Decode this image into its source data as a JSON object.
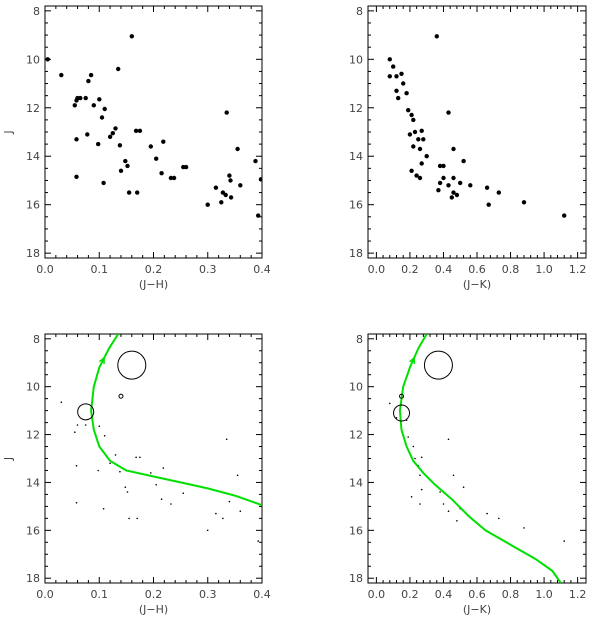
{
  "chart_data": [
    {
      "type": "scatter",
      "panel": "top-left",
      "xlabel": "(J−H)",
      "ylabel": "J",
      "xlim": [
        0.0,
        0.4
      ],
      "ylim": [
        18.2,
        7.8
      ],
      "y_inverted": true,
      "xticks": [
        "0.0",
        "0.1",
        "0.2",
        "0.3",
        "0.4"
      ],
      "yticks": [
        "8",
        "10",
        "12",
        "14",
        "16",
        "18"
      ],
      "grid": false,
      "series": [
        {
          "marker": "dot",
          "points": [
            [
              0.005,
              10.0
            ],
            [
              0.03,
              10.65
            ],
            [
              0.06,
              11.6
            ],
            [
              0.065,
              11.6
            ],
            [
              0.075,
              11.6
            ],
            [
              0.08,
              10.9
            ],
            [
              0.085,
              10.65
            ],
            [
              0.09,
              11.9
            ],
            [
              0.055,
              11.9
            ],
            [
              0.058,
              11.7
            ],
            [
              0.1,
              11.65
            ],
            [
              0.11,
              12.05
            ],
            [
              0.105,
              12.4
            ],
            [
              0.13,
              12.85
            ],
            [
              0.135,
              10.4
            ],
            [
              0.16,
              9.05
            ],
            [
              0.168,
              12.95
            ],
            [
              0.175,
              12.95
            ],
            [
              0.12,
              13.2
            ],
            [
              0.125,
              13.05
            ],
            [
              0.058,
              13.3
            ],
            [
              0.078,
              13.1
            ],
            [
              0.098,
              13.5
            ],
            [
              0.138,
              13.55
            ],
            [
              0.148,
              14.2
            ],
            [
              0.152,
              14.4
            ],
            [
              0.14,
              14.6
            ],
            [
              0.195,
              13.6
            ],
            [
              0.218,
              13.4
            ],
            [
              0.205,
              14.1
            ],
            [
              0.215,
              14.7
            ],
            [
              0.232,
              14.9
            ],
            [
              0.238,
              14.9
            ],
            [
              0.255,
              14.45
            ],
            [
              0.26,
              14.45
            ],
            [
              0.058,
              14.85
            ],
            [
              0.108,
              15.1
            ],
            [
              0.155,
              15.5
            ],
            [
              0.17,
              15.5
            ],
            [
              0.335,
              12.2
            ],
            [
              0.355,
              13.7
            ],
            [
              0.388,
              14.2
            ],
            [
              0.398,
              14.95
            ],
            [
              0.34,
              14.8
            ],
            [
              0.342,
              15.0
            ],
            [
              0.36,
              15.2
            ],
            [
              0.315,
              15.3
            ],
            [
              0.328,
              15.5
            ],
            [
              0.333,
              15.6
            ],
            [
              0.325,
              15.9
            ],
            [
              0.3,
              16.0
            ],
            [
              0.343,
              15.7
            ],
            [
              0.393,
              16.45
            ]
          ]
        }
      ]
    },
    {
      "type": "scatter",
      "panel": "top-right",
      "xlabel": "(J−K)",
      "ylabel": "J",
      "xlim": [
        -0.05,
        1.25
      ],
      "ylim": [
        18.2,
        7.8
      ],
      "y_inverted": true,
      "xticks": [
        "0.0",
        "0.2",
        "0.4",
        "0.6",
        "0.8",
        "1.0",
        "1.2"
      ],
      "yticks": [
        "8",
        "10",
        "12",
        "14",
        "16",
        "18"
      ],
      "grid": false,
      "series": [
        {
          "marker": "dot",
          "points": [
            [
              0.08,
              10.0
            ],
            [
              0.1,
              10.3
            ],
            [
              0.12,
              10.7
            ],
            [
              0.08,
              10.7
            ],
            [
              0.15,
              10.6
            ],
            [
              0.16,
              11.0
            ],
            [
              0.18,
              11.4
            ],
            [
              0.12,
              11.3
            ],
            [
              0.13,
              11.6
            ],
            [
              0.19,
              12.1
            ],
            [
              0.21,
              12.3
            ],
            [
              0.22,
              12.5
            ],
            [
              0.23,
              13.0
            ],
            [
              0.27,
              12.95
            ],
            [
              0.2,
              13.1
            ],
            [
              0.25,
              13.3
            ],
            [
              0.28,
              13.3
            ],
            [
              0.22,
              13.6
            ],
            [
              0.26,
              13.7
            ],
            [
              0.3,
              14.0
            ],
            [
              0.27,
              14.3
            ],
            [
              0.21,
              14.6
            ],
            [
              0.24,
              14.8
            ],
            [
              0.26,
              14.9
            ],
            [
              0.36,
              9.05
            ],
            [
              0.43,
              12.2
            ],
            [
              0.38,
              14.4
            ],
            [
              0.4,
              14.4
            ],
            [
              0.46,
              13.7
            ],
            [
              0.52,
              14.2
            ],
            [
              0.4,
              14.9
            ],
            [
              0.38,
              15.1
            ],
            [
              0.37,
              15.4
            ],
            [
              0.43,
              15.2
            ],
            [
              0.46,
              14.9
            ],
            [
              0.5,
              15.1
            ],
            [
              0.56,
              15.2
            ],
            [
              0.48,
              15.6
            ],
            [
              0.45,
              15.7
            ],
            [
              0.46,
              15.5
            ],
            [
              0.66,
              15.3
            ],
            [
              0.73,
              15.5
            ],
            [
              0.67,
              16.0
            ],
            [
              0.88,
              15.9
            ],
            [
              1.12,
              16.45
            ]
          ]
        }
      ]
    },
    {
      "type": "scatter",
      "panel": "bottom-left",
      "xlabel": "(J−H)",
      "ylabel": "J",
      "xlim": [
        0.0,
        0.4
      ],
      "ylim": [
        18.2,
        7.8
      ],
      "y_inverted": true,
      "xticks": [
        "0.0",
        "0.1",
        "0.2",
        "0.3",
        "0.4"
      ],
      "yticks": [
        "8",
        "10",
        "12",
        "14",
        "16",
        "18"
      ],
      "grid": false,
      "circles": [
        {
          "x": 0.16,
          "y": 9.1,
          "r": 14
        },
        {
          "x": 0.075,
          "y": 11.05,
          "r": 8
        },
        {
          "x": 0.14,
          "y": 10.4,
          "r": 2
        }
      ],
      "series": [
        {
          "marker": "tiny",
          "points": [
            [
              0.03,
              10.65
            ],
            [
              0.06,
              11.6
            ],
            [
              0.075,
              11.6
            ],
            [
              0.055,
              11.9
            ],
            [
              0.1,
              11.65
            ],
            [
              0.11,
              12.05
            ],
            [
              0.13,
              12.85
            ],
            [
              0.168,
              12.95
            ],
            [
              0.175,
              12.95
            ],
            [
              0.12,
              13.2
            ],
            [
              0.058,
              13.3
            ],
            [
              0.098,
              13.5
            ],
            [
              0.138,
              13.55
            ],
            [
              0.148,
              14.2
            ],
            [
              0.152,
              14.4
            ],
            [
              0.195,
              13.6
            ],
            [
              0.218,
              13.4
            ],
            [
              0.205,
              14.1
            ],
            [
              0.215,
              14.7
            ],
            [
              0.232,
              14.9
            ],
            [
              0.255,
              14.45
            ],
            [
              0.058,
              14.85
            ],
            [
              0.108,
              15.1
            ],
            [
              0.155,
              15.5
            ],
            [
              0.17,
              15.5
            ],
            [
              0.335,
              12.2
            ],
            [
              0.355,
              13.7
            ],
            [
              0.34,
              14.8
            ],
            [
              0.36,
              15.2
            ],
            [
              0.315,
              15.3
            ],
            [
              0.328,
              15.5
            ],
            [
              0.3,
              16.0
            ],
            [
              0.393,
              16.45
            ]
          ]
        },
        {
          "marker": "line",
          "color": "#00e000",
          "points": [
            [
              0.135,
              7.8
            ],
            [
              0.118,
              8.4
            ],
            [
              0.1,
              9.2
            ],
            [
              0.09,
              10.0
            ],
            [
              0.085,
              11.0
            ],
            [
              0.09,
              11.8
            ],
            [
              0.1,
              12.5
            ],
            [
              0.12,
              13.1
            ],
            [
              0.15,
              13.5
            ],
            [
              0.2,
              13.75
            ],
            [
              0.25,
              14.0
            ],
            [
              0.3,
              14.25
            ],
            [
              0.35,
              14.55
            ],
            [
              0.4,
              14.95
            ]
          ]
        }
      ]
    },
    {
      "type": "scatter",
      "panel": "bottom-right",
      "xlabel": "(J−K)",
      "ylabel": "J",
      "xlim": [
        -0.05,
        1.25
      ],
      "ylim": [
        18.2,
        7.8
      ],
      "y_inverted": true,
      "xticks": [
        "0.0",
        "0.2",
        "0.4",
        "0.6",
        "0.8",
        "1.0",
        "1.2"
      ],
      "yticks": [
        "8",
        "10",
        "12",
        "14",
        "16",
        "18"
      ],
      "grid": false,
      "circles": [
        {
          "x": 0.37,
          "y": 9.1,
          "r": 14
        },
        {
          "x": 0.15,
          "y": 11.1,
          "r": 8
        },
        {
          "x": 0.15,
          "y": 10.4,
          "r": 2
        }
      ],
      "series": [
        {
          "marker": "tiny",
          "points": [
            [
              0.08,
              10.7
            ],
            [
              0.12,
              11.3
            ],
            [
              0.18,
              11.4
            ],
            [
              0.19,
              12.1
            ],
            [
              0.22,
              12.5
            ],
            [
              0.23,
              13.0
            ],
            [
              0.27,
              12.95
            ],
            [
              0.25,
              13.3
            ],
            [
              0.26,
              13.7
            ],
            [
              0.27,
              14.3
            ],
            [
              0.21,
              14.6
            ],
            [
              0.26,
              14.9
            ],
            [
              0.43,
              12.2
            ],
            [
              0.38,
              14.4
            ],
            [
              0.46,
              13.7
            ],
            [
              0.52,
              14.2
            ],
            [
              0.4,
              14.9
            ],
            [
              0.43,
              15.2
            ],
            [
              0.5,
              15.1
            ],
            [
              0.48,
              15.6
            ],
            [
              0.66,
              15.3
            ],
            [
              0.73,
              15.5
            ],
            [
              0.88,
              15.9
            ],
            [
              1.12,
              16.45
            ]
          ]
        },
        {
          "marker": "line",
          "color": "#00e000",
          "points": [
            [
              0.3,
              7.8
            ],
            [
              0.25,
              8.4
            ],
            [
              0.2,
              9.2
            ],
            [
              0.16,
              10.0
            ],
            [
              0.14,
              11.0
            ],
            [
              0.15,
              11.8
            ],
            [
              0.18,
              12.5
            ],
            [
              0.22,
              13.1
            ],
            [
              0.28,
              13.6
            ],
            [
              0.35,
              14.1
            ],
            [
              0.45,
              14.7
            ],
            [
              0.55,
              15.4
            ],
            [
              0.65,
              16.0
            ],
            [
              0.8,
              16.6
            ],
            [
              0.95,
              17.2
            ],
            [
              1.05,
              17.7
            ],
            [
              1.1,
              18.2
            ]
          ]
        }
      ]
    }
  ]
}
